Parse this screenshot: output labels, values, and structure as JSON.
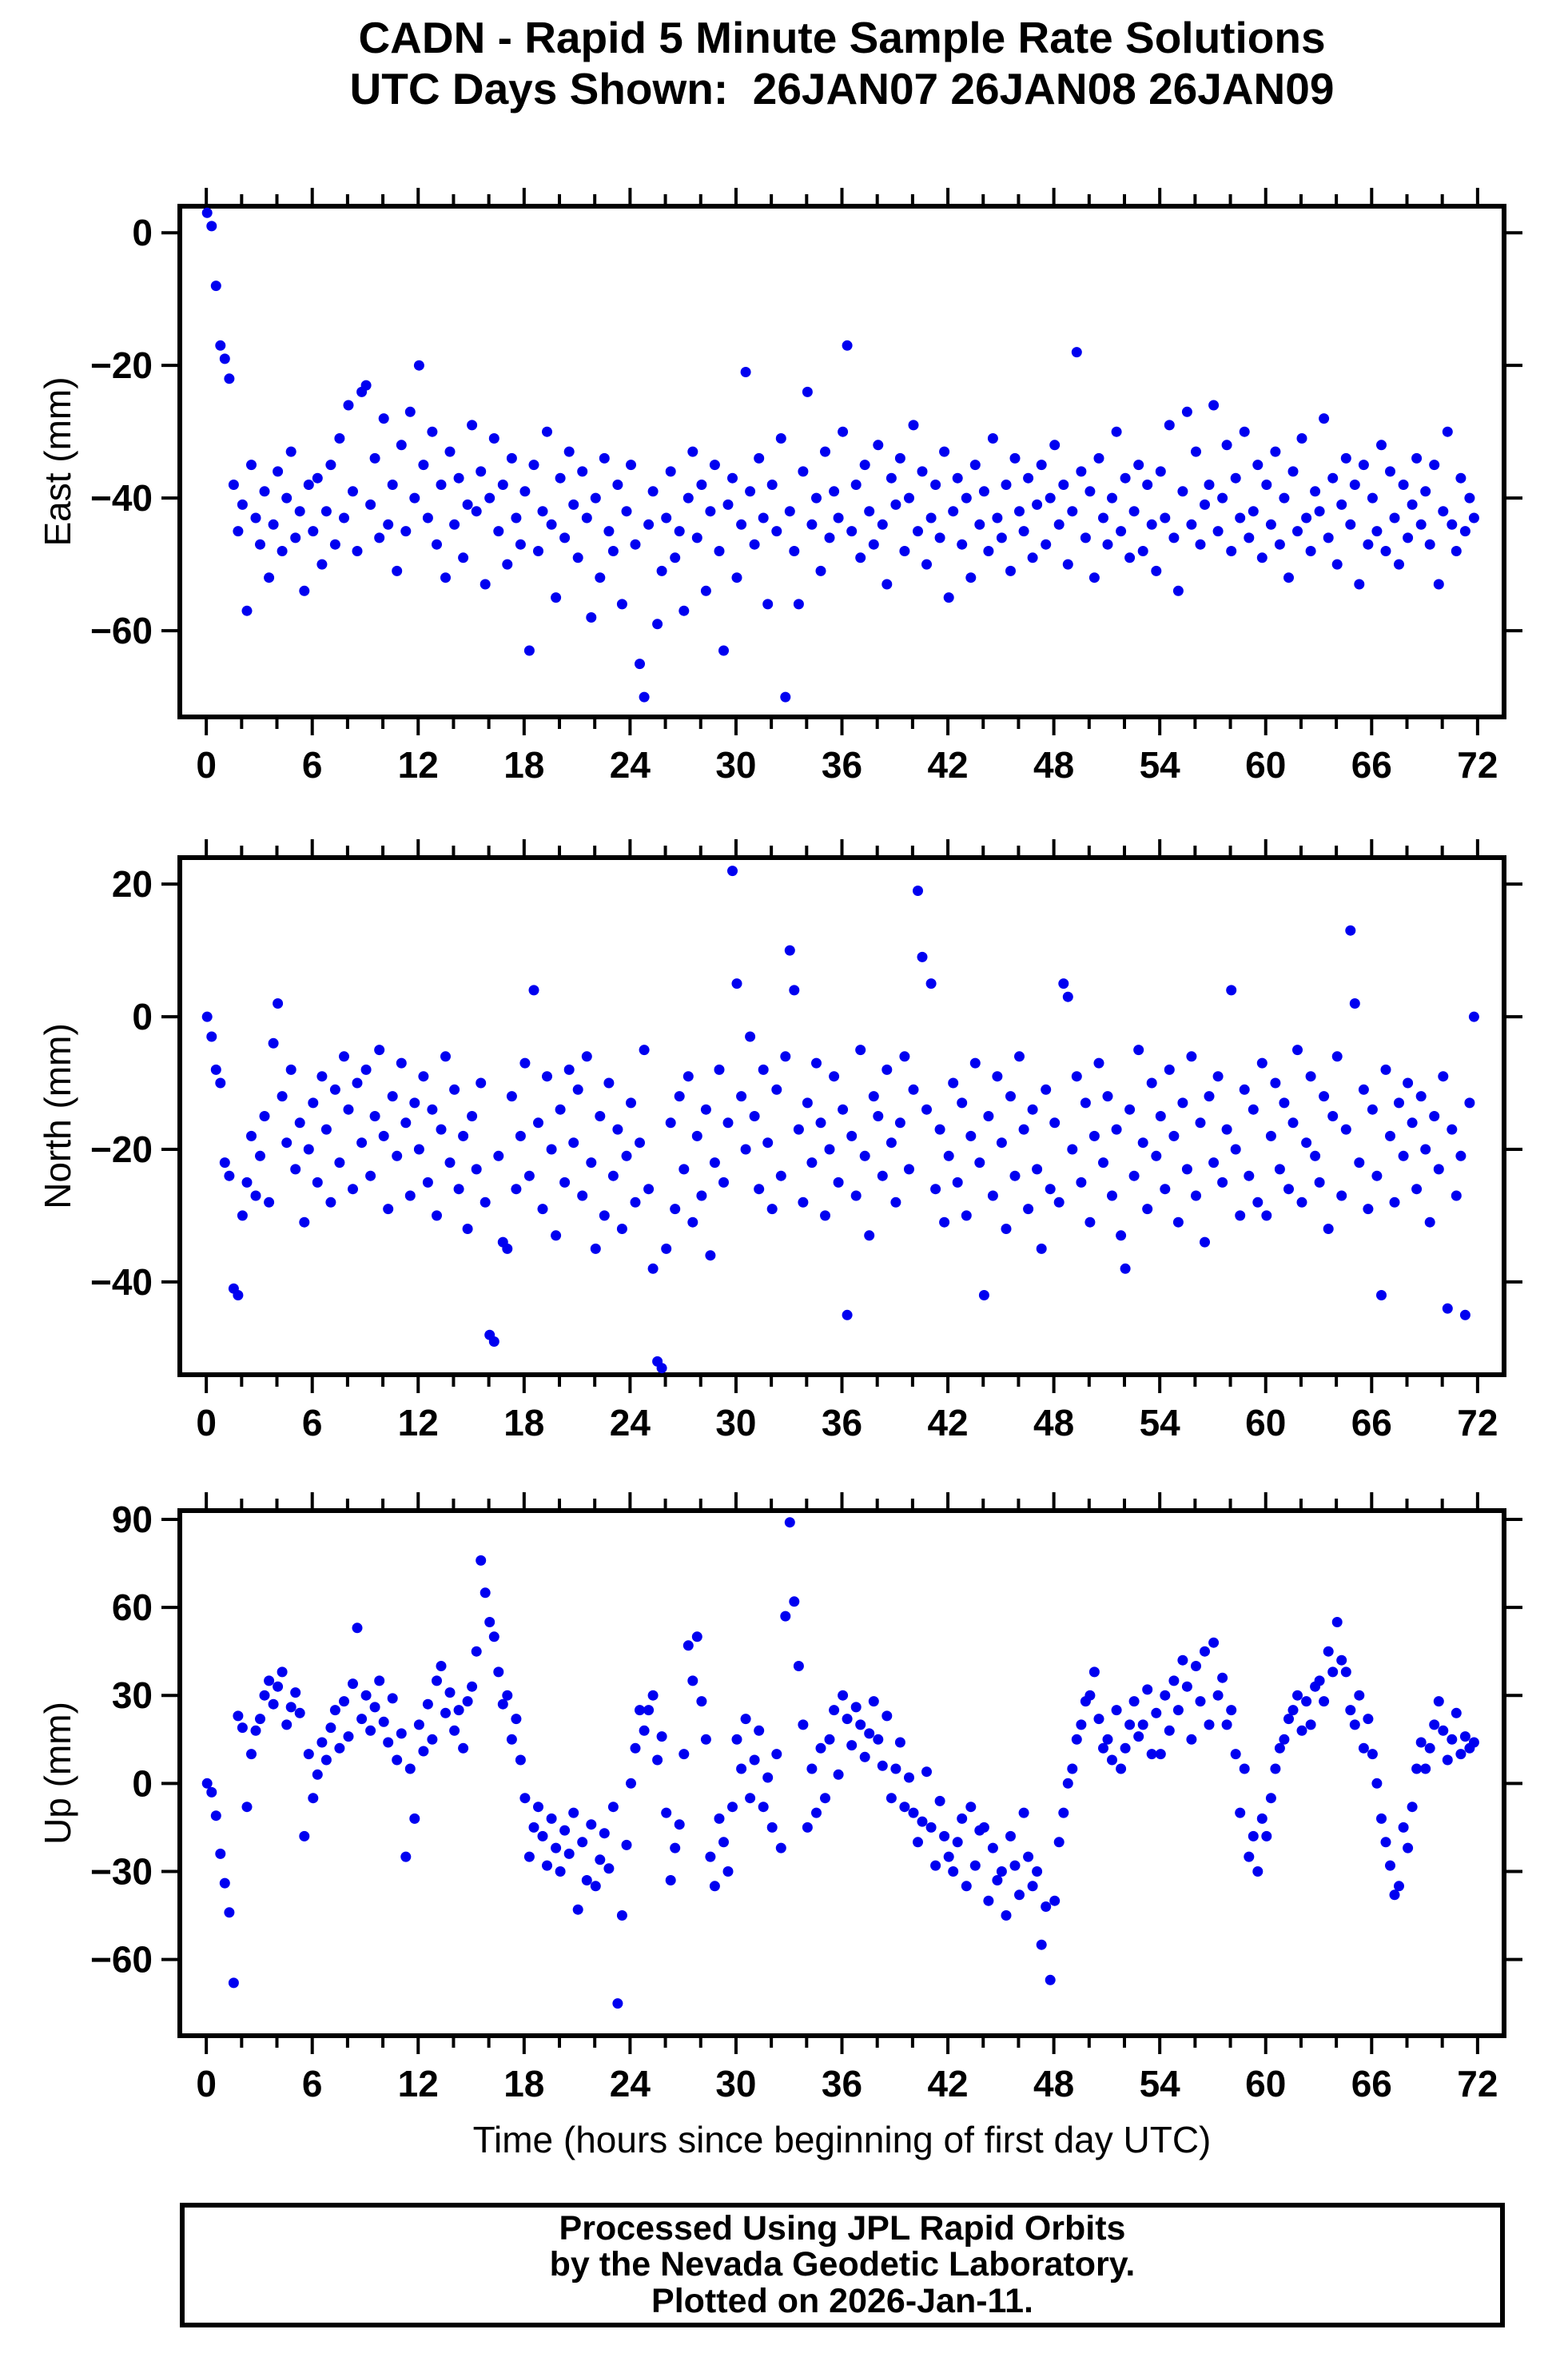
{
  "header": {
    "title": "CADN - Rapid 5 Minute Sample Rate Solutions",
    "subtitle": "UTC Days Shown:  26JAN07 26JAN08 26JAN09"
  },
  "footer": {
    "line1": "Processed Using JPL Rapid Orbits",
    "line2": "by the Nevada Geodetic Laboratory.",
    "line3": "Plotted on 2026-Jan-11."
  },
  "axis": {
    "x_label": "Time (hours since beginning of first day UTC)",
    "x_ticks": [
      0,
      6,
      12,
      18,
      24,
      30,
      36,
      42,
      48,
      54,
      60,
      66,
      72
    ],
    "x_minor_step": 2,
    "x_range": [
      -1.5,
      73.5
    ]
  },
  "style": {
    "marker_color": "#0000f0",
    "frame_color": "#000000"
  },
  "chart_data": [
    {
      "type": "scatter",
      "panel": "east",
      "ylabel": "East (mm)",
      "ylim": [
        -73,
        4
      ],
      "yticks": [
        0,
        -20,
        -40,
        -60
      ],
      "x_start": 0.05,
      "x_step": 0.25,
      "y": [
        3,
        1,
        -8,
        -17,
        -19,
        -22,
        -38,
        -45,
        -41,
        -57,
        -35,
        -43,
        -47,
        -39,
        -52,
        -44,
        -36,
        -48,
        -40,
        -33,
        -46,
        -42,
        -54,
        -38,
        -45,
        -37,
        -50,
        -42,
        -35,
        -47,
        -31,
        -43,
        -26,
        -39,
        -48,
        -24,
        -23,
        -41,
        -34,
        -46,
        -28,
        -44,
        -38,
        -51,
        -32,
        -45,
        -27,
        -40,
        -20,
        -35,
        -43,
        -30,
        -47,
        -38,
        -52,
        -33,
        -44,
        -37,
        -49,
        -41,
        -29,
        -42,
        -36,
        -53,
        -40,
        -31,
        -45,
        -38,
        -50,
        -34,
        -43,
        -47,
        -39,
        -63,
        -35,
        -48,
        -42,
        -30,
        -44,
        -55,
        -37,
        -46,
        -33,
        -41,
        -49,
        -36,
        -43,
        -58,
        -40,
        -52,
        -34,
        -45,
        -48,
        -38,
        -56,
        -42,
        -35,
        -47,
        -65,
        -70,
        -44,
        -39,
        -59,
        -51,
        -43,
        -36,
        -49,
        -45,
        -57,
        -40,
        -33,
        -46,
        -38,
        -54,
        -42,
        -35,
        -48,
        -63,
        -41,
        -37,
        -52,
        -44,
        -21,
        -39,
        -47,
        -34,
        -43,
        -56,
        -38,
        -45,
        -31,
        -70,
        -42,
        -48,
        -56,
        -36,
        -24,
        -44,
        -40,
        -51,
        -33,
        -46,
        -39,
        -43,
        -30,
        -17,
        -45,
        -38,
        -49,
        -35,
        -42,
        -47,
        -32,
        -44,
        -53,
        -37,
        -41,
        -34,
        -48,
        -40,
        -29,
        -45,
        -36,
        -50,
        -43,
        -38,
        -46,
        -33,
        -55,
        -42,
        -37,
        -47,
        -40,
        -52,
        -35,
        -44,
        -39,
        -48,
        -31,
        -43,
        -46,
        -38,
        -51,
        -34,
        -42,
        -45,
        -37,
        -49,
        -41,
        -35,
        -47,
        -40,
        -32,
        -44,
        -38,
        -50,
        -42,
        -18,
        -36,
        -46,
        -39,
        -52,
        -34,
        -43,
        -47,
        -40,
        -30,
        -45,
        -37,
        -49,
        -42,
        -35,
        -48,
        -38,
        -44,
        -51,
        -36,
        -43,
        -29,
        -46,
        -54,
        -39,
        -27,
        -44,
        -33,
        -47,
        -41,
        -38,
        -26,
        -45,
        -40,
        -32,
        -48,
        -37,
        -43,
        -30,
        -46,
        -42,
        -35,
        -49,
        -38,
        -44,
        -33,
        -47,
        -40,
        -52,
        -36,
        -45,
        -31,
        -43,
        -48,
        -39,
        -42,
        -28,
        -46,
        -37,
        -50,
        -41,
        -34,
        -44,
        -38,
        -53,
        -35,
        -47,
        -40,
        -45,
        -32,
        -48,
        -36,
        -43,
        -50,
        -38,
        -46,
        -41,
        -34,
        -44,
        -39,
        -47,
        -35,
        -53,
        -42,
        -30,
        -44,
        -48,
        -37,
        -45,
        -40,
        -43
      ]
    },
    {
      "type": "scatter",
      "panel": "north",
      "ylabel": "North (mm)",
      "ylim": [
        -54,
        24
      ],
      "yticks": [
        20,
        0,
        -20,
        -40
      ],
      "x_start": 0.05,
      "x_step": 0.25,
      "y": [
        0,
        -3,
        -8,
        -10,
        -22,
        -24,
        -41,
        -42,
        -30,
        -25,
        -18,
        -27,
        -21,
        -15,
        -28,
        -4,
        2,
        -12,
        -19,
        -8,
        -23,
        -16,
        -31,
        -20,
        -13,
        -25,
        -9,
        -17,
        -28,
        -11,
        -22,
        -6,
        -14,
        -26,
        -10,
        -19,
        -8,
        -24,
        -15,
        -5,
        -18,
        -29,
        -12,
        -21,
        -7,
        -16,
        -27,
        -13,
        -20,
        -9,
        -25,
        -14,
        -30,
        -17,
        -6,
        -22,
        -11,
        -26,
        -18,
        -32,
        -15,
        -23,
        -10,
        -28,
        -48,
        -49,
        -21,
        -34,
        -35,
        -12,
        -26,
        -18,
        -7,
        -24,
        4,
        -16,
        -29,
        -9,
        -20,
        -33,
        -14,
        -25,
        -8,
        -19,
        -11,
        -27,
        -6,
        -22,
        -35,
        -15,
        -30,
        -10,
        -24,
        -17,
        -32,
        -21,
        -13,
        -28,
        -19,
        -5,
        -26,
        -38,
        -52,
        -53,
        -35,
        -16,
        -29,
        -12,
        -23,
        -9,
        -31,
        -18,
        -27,
        -14,
        -36,
        -22,
        -8,
        -25,
        -16,
        22,
        5,
        -12,
        -20,
        -3,
        -15,
        -26,
        -8,
        -19,
        -29,
        -11,
        -24,
        -6,
        10,
        4,
        -17,
        -28,
        -13,
        -22,
        -7,
        -16,
        -30,
        -20,
        -9,
        -25,
        -14,
        -45,
        -18,
        -27,
        -5,
        -21,
        -33,
        -12,
        -15,
        -24,
        -8,
        -19,
        -28,
        -16,
        -6,
        -23,
        -11,
        19,
        9,
        -14,
        5,
        -26,
        -17,
        -31,
        -21,
        -10,
        -25,
        -13,
        -30,
        -18,
        -7,
        -22,
        -42,
        -15,
        -27,
        -9,
        -19,
        -32,
        -12,
        -24,
        -6,
        -17,
        -29,
        -14,
        -23,
        -35,
        -11,
        -26,
        -16,
        -28,
        5,
        3,
        -20,
        -9,
        -25,
        -13,
        -31,
        -18,
        -7,
        -22,
        -12,
        -27,
        -17,
        -33,
        -38,
        -14,
        -24,
        -5,
        -19,
        -29,
        -10,
        -21,
        -15,
        -26,
        -8,
        -18,
        -31,
        -13,
        -23,
        -6,
        -27,
        -16,
        -34,
        -12,
        -22,
        -9,
        -25,
        -17,
        4,
        -20,
        -30,
        -11,
        -24,
        -14,
        -28,
        -7,
        -30,
        -18,
        -10,
        -23,
        -13,
        -26,
        -16,
        -5,
        -28,
        -19,
        -9,
        -21,
        -25,
        -12,
        -32,
        -15,
        -6,
        -27,
        -17,
        13,
        2,
        -22,
        -11,
        -29,
        -14,
        -24,
        -42,
        -8,
        -18,
        -28,
        -13,
        -21,
        -10,
        -16,
        -26,
        -12,
        -20,
        -31,
        -15,
        -23,
        -9,
        -44,
        -17,
        -27,
        -21,
        -45,
        -13,
        0
      ]
    },
    {
      "type": "scatter",
      "panel": "up",
      "ylabel": "Up (mm)",
      "ylim": [
        -86,
        93
      ],
      "yticks": [
        90,
        60,
        30,
        0,
        -30,
        -60
      ],
      "x_start": 0.05,
      "x_step": 0.25,
      "y": [
        0,
        -3,
        -11,
        -24,
        -34,
        -44,
        -68,
        23,
        19,
        -8,
        10,
        18,
        22,
        30,
        35,
        27,
        33,
        38,
        20,
        26,
        31,
        24,
        -18,
        10,
        -5,
        3,
        14,
        8,
        19,
        25,
        12,
        28,
        16,
        34,
        53,
        22,
        30,
        18,
        26,
        35,
        21,
        14,
        29,
        8,
        17,
        -25,
        5,
        -12,
        20,
        11,
        27,
        15,
        35,
        40,
        24,
        31,
        18,
        25,
        12,
        28,
        33,
        45,
        76,
        65,
        55,
        50,
        38,
        27,
        30,
        15,
        22,
        8,
        -5,
        -25,
        -15,
        -8,
        -18,
        -28,
        -12,
        -22,
        -30,
        -16,
        -24,
        -10,
        -43,
        -20,
        -33,
        -14,
        -35,
        -26,
        -17,
        -29,
        -8,
        -75,
        -45,
        -21,
        0,
        12,
        25,
        18,
        25,
        30,
        8,
        16,
        -10,
        -33,
        -22,
        -14,
        10,
        47,
        35,
        50,
        28,
        15,
        -25,
        -35,
        -12,
        -20,
        -30,
        -8,
        15,
        5,
        22,
        -5,
        8,
        18,
        -8,
        2,
        -15,
        10,
        -22,
        57,
        89,
        62,
        40,
        20,
        -15,
        5,
        -10,
        12,
        -5,
        15,
        25,
        3,
        30,
        22,
        13,
        26,
        20,
        9,
        17,
        28,
        15,
        6,
        23,
        -5,
        5,
        14,
        -8,
        2,
        -10,
        -20,
        -13,
        4,
        -15,
        -28,
        -6,
        -18,
        -25,
        -30,
        -20,
        -12,
        -35,
        -8,
        -28,
        -16,
        -15,
        -40,
        -22,
        -33,
        -30,
        -45,
        -18,
        -28,
        -38,
        -10,
        -25,
        -35,
        -30,
        -55,
        -42,
        -67,
        -40,
        -20,
        -10,
        0,
        5,
        15,
        20,
        28,
        30,
        38,
        22,
        12,
        15,
        8,
        25,
        5,
        12,
        20,
        28,
        16,
        20,
        32,
        10,
        24,
        10,
        30,
        18,
        35,
        25,
        42,
        33,
        15,
        40,
        28,
        45,
        20,
        48,
        30,
        36,
        20,
        25,
        10,
        -10,
        5,
        -25,
        -18,
        -30,
        -12,
        -18,
        -5,
        5,
        12,
        15,
        22,
        25,
        30,
        18,
        28,
        20,
        33,
        35,
        28,
        45,
        38,
        55,
        42,
        38,
        25,
        20,
        30,
        12,
        22,
        10,
        0,
        -12,
        -20,
        -28,
        -38,
        -35,
        -15,
        -22,
        -8,
        5,
        14,
        5,
        12,
        20,
        28,
        18,
        8,
        15,
        24,
        10,
        16,
        12,
        14
      ]
    }
  ]
}
